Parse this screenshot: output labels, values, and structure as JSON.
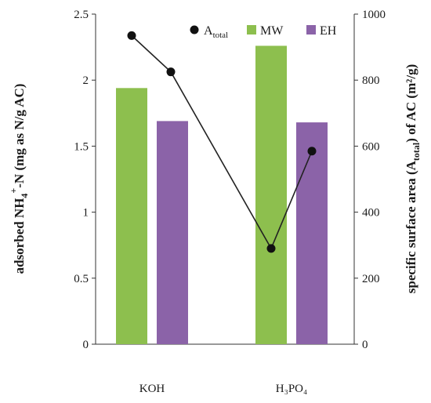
{
  "chart_data": {
    "type": "bar",
    "categories": [
      "KOH",
      "H₃PO₄"
    ],
    "series": [
      {
        "name": "MW",
        "axis": "left",
        "color": "#8dbf4e",
        "values": [
          1.94,
          2.26
        ]
      },
      {
        "name": "EH",
        "axis": "left",
        "color": "#8b63a8",
        "values": [
          1.69,
          1.68
        ]
      },
      {
        "name": "Atotal",
        "axis": "right",
        "type": "line",
        "color": "#111111",
        "x": [
          "KOH-MW",
          "KOH-EH",
          "H3PO4-MW",
          "H3PO4-EH"
        ],
        "values": [
          935,
          825,
          290,
          585
        ]
      }
    ],
    "ylabel_left": {
      "main": "adsorbed NH",
      "sub": "4",
      "sup": "+",
      "rest": "-N (mg as N/g AC)"
    },
    "ylabel_right": {
      "main": "specific surface area (A",
      "sub": "total",
      "rest": ") of AC (m²/g)"
    },
    "ylim_left": [
      0,
      2.5
    ],
    "yticks_left": [
      "0",
      "0.5",
      "1",
      "1.5",
      "2",
      "2.5"
    ],
    "ylim_right": [
      0,
      1000
    ],
    "yticks_right": [
      "0",
      "200",
      "400",
      "600",
      "800",
      "1000"
    ],
    "legend": {
      "position": "top-right",
      "items": [
        {
          "label_main": "A",
          "label_sub": "total",
          "marker": "dot"
        },
        {
          "label_main": "MW",
          "label_sub": "",
          "marker": "square"
        },
        {
          "label_main": "EH",
          "label_sub": "",
          "marker": "square"
        }
      ]
    },
    "grid": false
  }
}
